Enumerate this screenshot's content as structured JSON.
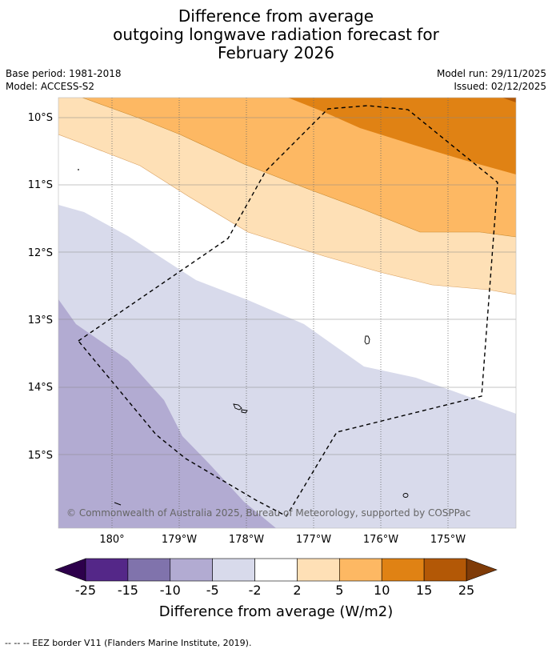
{
  "title": {
    "line1": "Difference from average",
    "line2": "outgoing longwave radiation forecast for",
    "line3": "February 2026"
  },
  "meta": {
    "base_period": "Base period: 1981-2018",
    "model": "Model: ACCESS-S2",
    "model_run": "Model run: 29/11/2025",
    "issued": "Issued: 02/12/2025"
  },
  "map": {
    "lat_labels": [
      "10°S",
      "11°S",
      "12°S",
      "13°S",
      "14°S",
      "15°S"
    ],
    "lon_labels": [
      "180°",
      "179°W",
      "178°W",
      "177°W",
      "176°W",
      "175°W"
    ],
    "copyright": "© Commonwealth of Australia 2025, Bureau of Meteorology, supported by COSPPac",
    "colors": {
      "neg_15_to_10": "#8073ac",
      "neg_10_to_5": "#b2abd2",
      "neg_5_to_2": "#d8daeb",
      "neutral": "#ffffff",
      "pos_2_to_5": "#fee0b6",
      "pos_5_to_10": "#fdb863",
      "pos_10_to_15": "#e08214",
      "pos_15_to_25": "#b35806"
    }
  },
  "colorbar": {
    "title": "Difference from average (W/m2)",
    "ticks": [
      "-25",
      "-15",
      "-10",
      "-5",
      "-2",
      "2",
      "5",
      "10",
      "15",
      "25"
    ],
    "colors": [
      "#542788",
      "#8073ac",
      "#b2abd2",
      "#d8daeb",
      "#ffffff",
      "#fee0b6",
      "#fdb863",
      "#e08214",
      "#b35806"
    ],
    "extend_low": "#2d004b",
    "extend_high": "#7f3b08"
  },
  "footer": {
    "legend_text": "-- -- -- EEZ border V11 (Flanders Marine Institute, 2019)."
  }
}
